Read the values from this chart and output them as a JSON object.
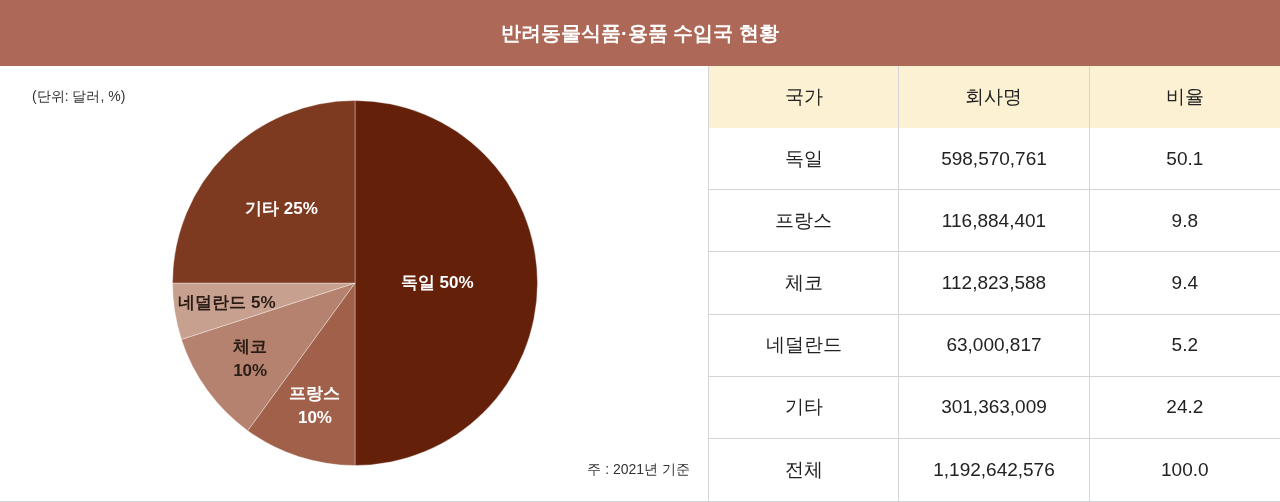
{
  "chart_data": [
    {
      "type": "pie",
      "title": "반려동물식품·용품 수입국 현황",
      "categories": [
        "독일",
        "프랑스",
        "체코",
        "네덜란드",
        "기타"
      ],
      "values": [
        50,
        10,
        10,
        5,
        25
      ],
      "value_labels": [
        "50%",
        "10%",
        "10%",
        "5%",
        "25%"
      ],
      "colors": [
        "#65200a",
        "#a0604a",
        "#b4826e",
        "#c8a090",
        "#7e3a20"
      ],
      "annotations": [
        "(단위: 달러, %)",
        "주 : 2021년 기준"
      ]
    },
    {
      "type": "other",
      "xlabel": "국가",
      "categories": [
        "독일",
        "프랑스",
        "체코",
        "네덜란드",
        "기타",
        "전체"
      ],
      "series": [
        {
          "name": "회사명",
          "values": [
            598570761,
            116884401,
            112823588,
            63000817,
            301363009,
            1192642576
          ],
          "value_labels": [
            "598,570,761",
            "116,884,401",
            "112,823,588",
            "63,000,817",
            "301,363,009",
            "1,192,642,576"
          ]
        },
        {
          "name": "비율",
          "values": [
            50.1,
            9.8,
            9.4,
            5.2,
            24.2,
            100
          ],
          "value_labels": [
            "50.1",
            "9.8",
            "9.4",
            "5.2",
            "24.2",
            "100.0"
          ]
        }
      ],
      "data_labels": true
    }
  ]
}
